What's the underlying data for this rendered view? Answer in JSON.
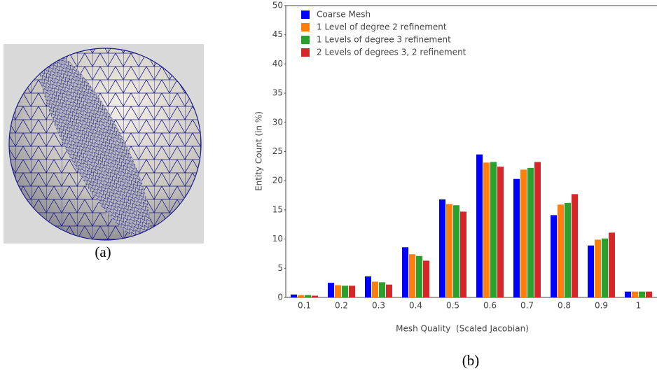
{
  "panels": {
    "a": "(a)",
    "b": "(b)"
  },
  "chart_data": {
    "type": "bar",
    "x_label": "Mesh Quality  (Scaled Jacobian)",
    "y_label": "Entity Count (in %)",
    "categories": [
      "0.1",
      "0.2",
      "0.3",
      "0.4",
      "0.5",
      "0.6",
      "0.7",
      "0.8",
      "0.9",
      "1"
    ],
    "series": [
      {
        "name": "Coarse Mesh",
        "color": "#0000ff",
        "values": [
          0.5,
          2.5,
          3.6,
          8.6,
          16.8,
          24.5,
          20.3,
          14.1,
          8.9,
          1.0
        ]
      },
      {
        "name": "1 Level of degree 2 refinement",
        "color": "#ff7f0e",
        "values": [
          0.4,
          2.1,
          2.7,
          7.4,
          16.0,
          23.1,
          21.9,
          15.9,
          9.9,
          1.0
        ]
      },
      {
        "name": "1 Levels of degree 3 refinement",
        "color": "#2ca02c",
        "values": [
          0.4,
          2.0,
          2.6,
          7.1,
          15.8,
          23.2,
          22.2,
          16.2,
          10.1,
          1.0
        ]
      },
      {
        "name": "2 Levels of degrees 3, 2 refinement",
        "color": "#d62728",
        "values": [
          0.3,
          2.0,
          2.2,
          6.3,
          14.7,
          22.4,
          23.2,
          17.7,
          11.1,
          1.0
        ]
      }
    ],
    "ylim": [
      0,
      50
    ],
    "yticks": [
      0,
      5,
      10,
      15,
      20,
      25,
      30,
      35,
      40,
      45,
      50
    ],
    "grid": false,
    "legend": "top-left"
  }
}
